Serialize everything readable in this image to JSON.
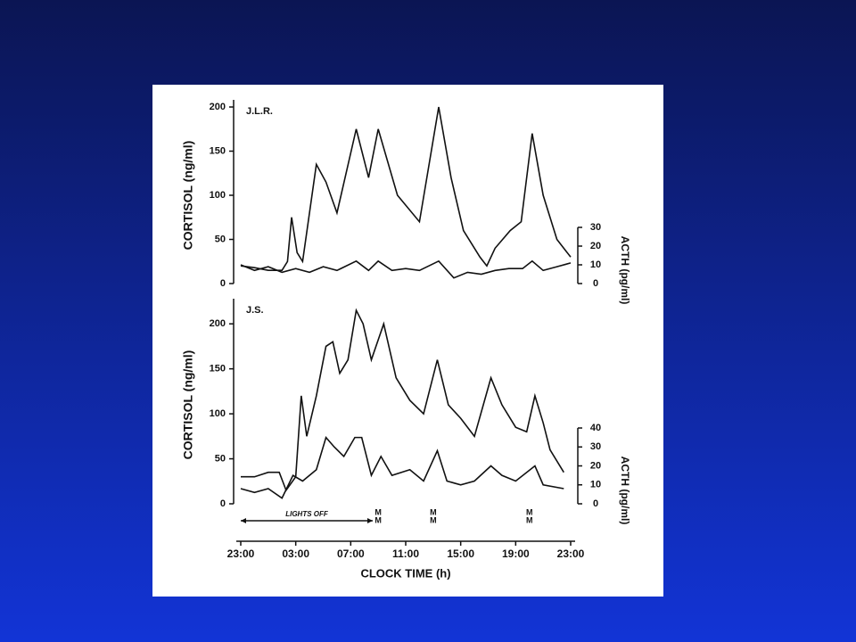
{
  "chart_data": [
    {
      "type": "line",
      "subject": "J.L.R.",
      "ylabel": "CORTISOL (ng/ml)",
      "y2label": "ACTH (pg/ml)",
      "xlim": [
        23,
        47
      ],
      "ylim": [
        0,
        200
      ],
      "yticks": [
        0,
        50,
        100,
        150,
        200
      ],
      "y2lim": [
        0,
        30
      ],
      "y2ticks": [
        0,
        10,
        20,
        30
      ],
      "series": [
        {
          "name": "Cortisol",
          "color": "#111111",
          "x": [
            23,
            24,
            25,
            26,
            26.4,
            26.7,
            27.1,
            27.5,
            28.5,
            29.2,
            30,
            31.4,
            32.3,
            33,
            34.4,
            36,
            37.4,
            38.3,
            39.2,
            40.4,
            40.9,
            41.5,
            42.6,
            43.4,
            44.2,
            45,
            46,
            47
          ],
          "values": [
            20,
            18,
            15,
            15,
            25,
            75,
            35,
            25,
            135,
            115,
            80,
            175,
            120,
            175,
            100,
            70,
            200,
            120,
            60,
            30,
            20,
            40,
            60,
            70,
            170,
            100,
            50,
            30
          ]
        },
        {
          "name": "ACTH",
          "color": "#111111",
          "axis": "y2",
          "x": [
            23,
            24,
            25,
            26,
            27,
            28,
            29,
            30,
            31.4,
            32.3,
            33,
            34,
            35,
            36,
            37.4,
            38.5,
            39.5,
            40.5,
            41.5,
            42.5,
            43.5,
            44.2,
            45,
            46,
            47
          ],
          "values": [
            10,
            7,
            9,
            6,
            8,
            6,
            9,
            7,
            12,
            7,
            12,
            7,
            8,
            7,
            12,
            3,
            6,
            5,
            7,
            8,
            8,
            12,
            7,
            9,
            11
          ]
        }
      ]
    },
    {
      "type": "line",
      "subject": "J.S.",
      "ylabel": "CORTISOL (ng/ml)",
      "y2label": "ACTH (pg/ml)",
      "xlabel": "CLOCK TIME (h)",
      "xlim": [
        23,
        47
      ],
      "ylim": [
        0,
        220
      ],
      "yticks": [
        0,
        50,
        100,
        150,
        200
      ],
      "y2lim": [
        0,
        40
      ],
      "y2ticks": [
        0,
        10,
        20,
        30,
        40
      ],
      "xticks": [
        {
          "value": 23,
          "label": "23:00"
        },
        {
          "value": 27,
          "label": "03:00"
        },
        {
          "value": 31,
          "label": "07:00"
        },
        {
          "value": 35,
          "label": "11:00"
        },
        {
          "value": 39,
          "label": "15:00"
        },
        {
          "value": 43,
          "label": "19:00"
        },
        {
          "value": 47,
          "label": "23:00"
        }
      ],
      "lights_off": {
        "label": "LIGHTS OFF",
        "x": [
          23,
          32.6
        ]
      },
      "markers": [
        {
          "x": 33,
          "label": "M"
        },
        {
          "x": 37,
          "label": "M"
        },
        {
          "x": 44,
          "label": "M"
        }
      ],
      "series": [
        {
          "name": "Cortisol",
          "color": "#111111",
          "x": [
            23,
            24,
            25,
            25.8,
            26.3,
            27,
            27.4,
            27.8,
            28.5,
            29.2,
            29.7,
            30.2,
            30.8,
            31.4,
            31.9,
            32.5,
            33.4,
            34.3,
            35.3,
            36.3,
            37.3,
            38.1,
            39,
            40,
            41.2,
            42,
            43,
            43.8,
            44.4,
            45,
            45.5,
            46.5
          ],
          "values": [
            30,
            30,
            35,
            35,
            15,
            30,
            120,
            75,
            120,
            175,
            180,
            145,
            160,
            215,
            200,
            160,
            200,
            140,
            115,
            100,
            160,
            110,
            95,
            75,
            140,
            110,
            85,
            80,
            120,
            90,
            60,
            35
          ]
        },
        {
          "name": "ACTH",
          "color": "#111111",
          "axis": "y2",
          "x": [
            23,
            24,
            25,
            26,
            26.8,
            27.5,
            28.5,
            29.2,
            29.8,
            30.5,
            31.3,
            31.8,
            32.5,
            33.2,
            34,
            35.3,
            36.3,
            37.3,
            38,
            39,
            40,
            41.2,
            42,
            43,
            44.4,
            45,
            46.5
          ],
          "values": [
            8,
            6,
            8,
            3,
            15,
            12,
            18,
            35,
            30,
            25,
            35,
            35,
            15,
            25,
            15,
            18,
            12,
            28,
            12,
            10,
            12,
            20,
            15,
            12,
            20,
            10,
            8
          ]
        }
      ]
    }
  ]
}
